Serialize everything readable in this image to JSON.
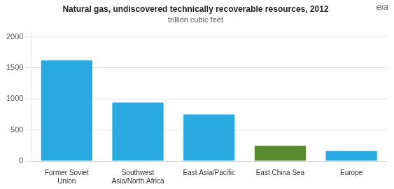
{
  "chart_data": {
    "type": "bar",
    "title": "Natural gas, undiscovered technically recoverable resources, 2012",
    "subtitle": "trillion cubic feet",
    "annotations": [
      "eia"
    ],
    "categories": [
      "Former Soviet\nUnion",
      "Southwest\nAsia/North Africa",
      "East Asia/Pacific",
      "East China Sea",
      "Europe"
    ],
    "values": [
      1620,
      940,
      750,
      245,
      160
    ],
    "colors": [
      "#29abe2",
      "#29abe2",
      "#29abe2",
      "#5a8a2e",
      "#29abe2"
    ],
    "ylim": [
      0,
      2100
    ],
    "yticks": [
      0,
      500,
      1000,
      1500,
      2000
    ],
    "grid": true
  }
}
